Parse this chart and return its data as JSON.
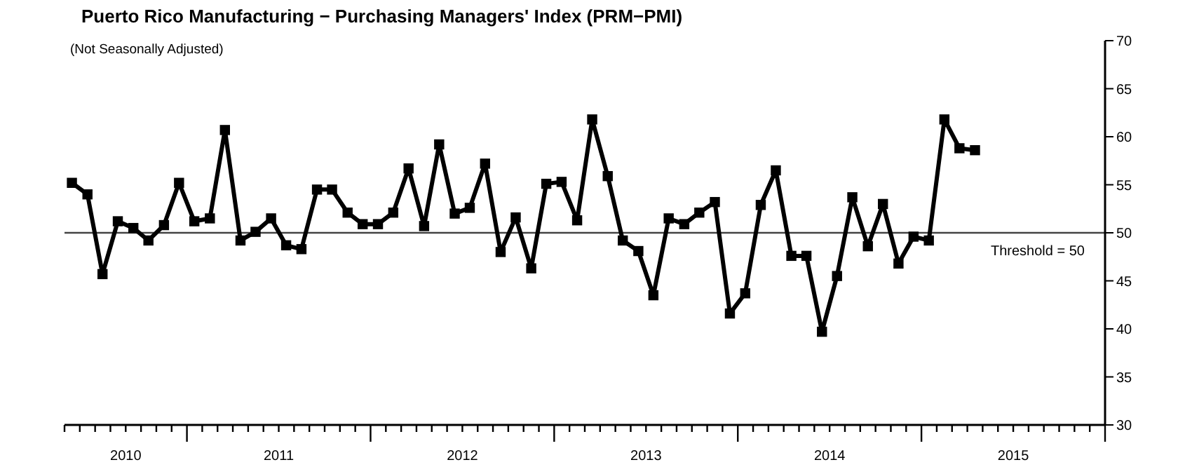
{
  "chart_data": {
    "type": "line",
    "title": "Puerto Rico Manufacturing − Purchasing Managers' Index (PRM−PMI)",
    "subtitle": "(Not Seasonally Adjusted)",
    "x": [
      "2010-05-16",
      "2010-06-16",
      "2010-07-16",
      "2010-08-16",
      "2010-09-16",
      "2010-10-16",
      "2010-11-16",
      "2010-12-16",
      "2011-01-16",
      "2011-02-15",
      "2011-03-16",
      "2011-04-16",
      "2011-05-16",
      "2011-06-16",
      "2011-07-16",
      "2011-08-16",
      "2011-09-16",
      "2011-10-16",
      "2011-11-16",
      "2011-12-16",
      "2012-01-16",
      "2012-02-15",
      "2012-03-16",
      "2012-04-16",
      "2012-05-16",
      "2012-06-16",
      "2012-07-16",
      "2012-08-16",
      "2012-09-16",
      "2012-10-16",
      "2012-11-16",
      "2012-12-16",
      "2013-01-16",
      "2013-02-15",
      "2013-03-16",
      "2013-04-16",
      "2013-05-16",
      "2013-06-16",
      "2013-07-16",
      "2013-08-16",
      "2013-09-16",
      "2013-10-16",
      "2013-11-16",
      "2013-12-16",
      "2014-01-16",
      "2014-02-15",
      "2014-03-16",
      "2014-04-16",
      "2014-05-16",
      "2014-06-16",
      "2014-07-16",
      "2014-08-16",
      "2014-09-16",
      "2014-10-16",
      "2014-11-16",
      "2014-12-16",
      "2015-01-16",
      "2015-02-15",
      "2015-03-16",
      "2015-04-16"
    ],
    "series": [
      {
        "color": "#000000",
        "values": [
          55.2,
          54.0,
          45.7,
          51.2,
          50.5,
          49.2,
          50.8,
          55.2,
          51.2,
          51.5,
          60.7,
          49.2,
          50.1,
          51.5,
          48.7,
          48.3,
          54.5,
          54.5,
          52.1,
          50.9,
          50.9,
          52.1,
          56.7,
          50.7,
          59.2,
          52.0,
          52.6,
          57.2,
          48.0,
          51.6,
          46.3,
          55.1,
          55.3,
          51.3,
          61.8,
          55.9,
          49.2,
          48.1,
          43.5,
          51.5,
          50.9,
          52.1,
          53.2,
          41.6,
          43.7,
          52.9,
          56.5,
          47.6,
          47.6,
          39.7,
          45.5,
          53.7,
          48.6,
          53.0,
          46.8,
          49.6,
          49.2,
          61.8,
          58.8,
          58.6
        ]
      }
    ],
    "marker": "square",
    "line_style": "solid",
    "ylim": [
      30,
      70
    ],
    "yticks": [
      30,
      35,
      40,
      45,
      50,
      55,
      60,
      65,
      70
    ],
    "xlim": [
      "2010-05",
      "2016-01"
    ],
    "xticks": [
      {
        "value": "2010-05",
        "label": null
      },
      {
        "value": "2010-06",
        "label": null
      },
      {
        "value": "2010-07",
        "label": null
      },
      {
        "value": "2010-08",
        "label": null
      },
      {
        "value": "2010-09",
        "label": "2010"
      },
      {
        "value": "2010-10",
        "label": null
      },
      {
        "value": "2010-11",
        "label": null
      },
      {
        "value": "2010-12",
        "label": null
      },
      {
        "value": "2011-01",
        "label": null
      },
      {
        "value": "2011-02",
        "label": null
      },
      {
        "value": "2011-03",
        "label": null
      },
      {
        "value": "2011-04",
        "label": null
      },
      {
        "value": "2011-05",
        "label": null
      },
      {
        "value": "2011-06",
        "label": null
      },
      {
        "value": "2011-07",
        "label": "2011"
      },
      {
        "value": "2011-08",
        "label": null
      },
      {
        "value": "2011-09",
        "label": null
      },
      {
        "value": "2011-10",
        "label": null
      },
      {
        "value": "2011-11",
        "label": null
      },
      {
        "value": "2011-12",
        "label": null
      },
      {
        "value": "2012-01",
        "label": null
      },
      {
        "value": "2012-02",
        "label": null
      },
      {
        "value": "2012-03",
        "label": null
      },
      {
        "value": "2012-04",
        "label": null
      },
      {
        "value": "2012-05",
        "label": null
      },
      {
        "value": "2012-06",
        "label": null
      },
      {
        "value": "2012-07",
        "label": "2012"
      },
      {
        "value": "2012-08",
        "label": null
      },
      {
        "value": "2012-09",
        "label": null
      },
      {
        "value": "2012-10",
        "label": null
      },
      {
        "value": "2012-11",
        "label": null
      },
      {
        "value": "2012-12",
        "label": null
      },
      {
        "value": "2013-01",
        "label": null
      },
      {
        "value": "2013-02",
        "label": null
      },
      {
        "value": "2013-03",
        "label": null
      },
      {
        "value": "2013-04",
        "label": null
      },
      {
        "value": "2013-05",
        "label": null
      },
      {
        "value": "2013-06",
        "label": null
      },
      {
        "value": "2013-07",
        "label": "2013"
      },
      {
        "value": "2013-08",
        "label": null
      },
      {
        "value": "2013-09",
        "label": null
      },
      {
        "value": "2013-10",
        "label": null
      },
      {
        "value": "2013-11",
        "label": null
      },
      {
        "value": "2013-12",
        "label": null
      },
      {
        "value": "2014-01",
        "label": null
      },
      {
        "value": "2014-02",
        "label": null
      },
      {
        "value": "2014-03",
        "label": null
      },
      {
        "value": "2014-04",
        "label": null
      },
      {
        "value": "2014-05",
        "label": null
      },
      {
        "value": "2014-06",
        "label": null
      },
      {
        "value": "2014-07",
        "label": "2014"
      },
      {
        "value": "2014-08",
        "label": null
      },
      {
        "value": "2014-09",
        "label": null
      },
      {
        "value": "2014-10",
        "label": null
      },
      {
        "value": "2014-11",
        "label": null
      },
      {
        "value": "2014-12",
        "label": null
      },
      {
        "value": "2015-01",
        "label": null
      },
      {
        "value": "2015-02",
        "label": null
      },
      {
        "value": "2015-03",
        "label": null
      },
      {
        "value": "2015-04",
        "label": null
      },
      {
        "value": "2015-05",
        "label": null
      },
      {
        "value": "2015-06",
        "label": null
      },
      {
        "value": "2015-07",
        "label": "2015"
      },
      {
        "value": "2015-08",
        "label": null
      },
      {
        "value": "2015-09",
        "label": null
      },
      {
        "value": "2015-10",
        "label": null
      },
      {
        "value": "2015-11",
        "label": null
      },
      {
        "value": "2015-12",
        "label": null
      },
      {
        "value": "2016-01",
        "label": null
      }
    ],
    "ref_lines": [
      {
        "axis": "y",
        "value": 50,
        "label": "Threshold = 50",
        "color": "#444444"
      }
    ]
  }
}
